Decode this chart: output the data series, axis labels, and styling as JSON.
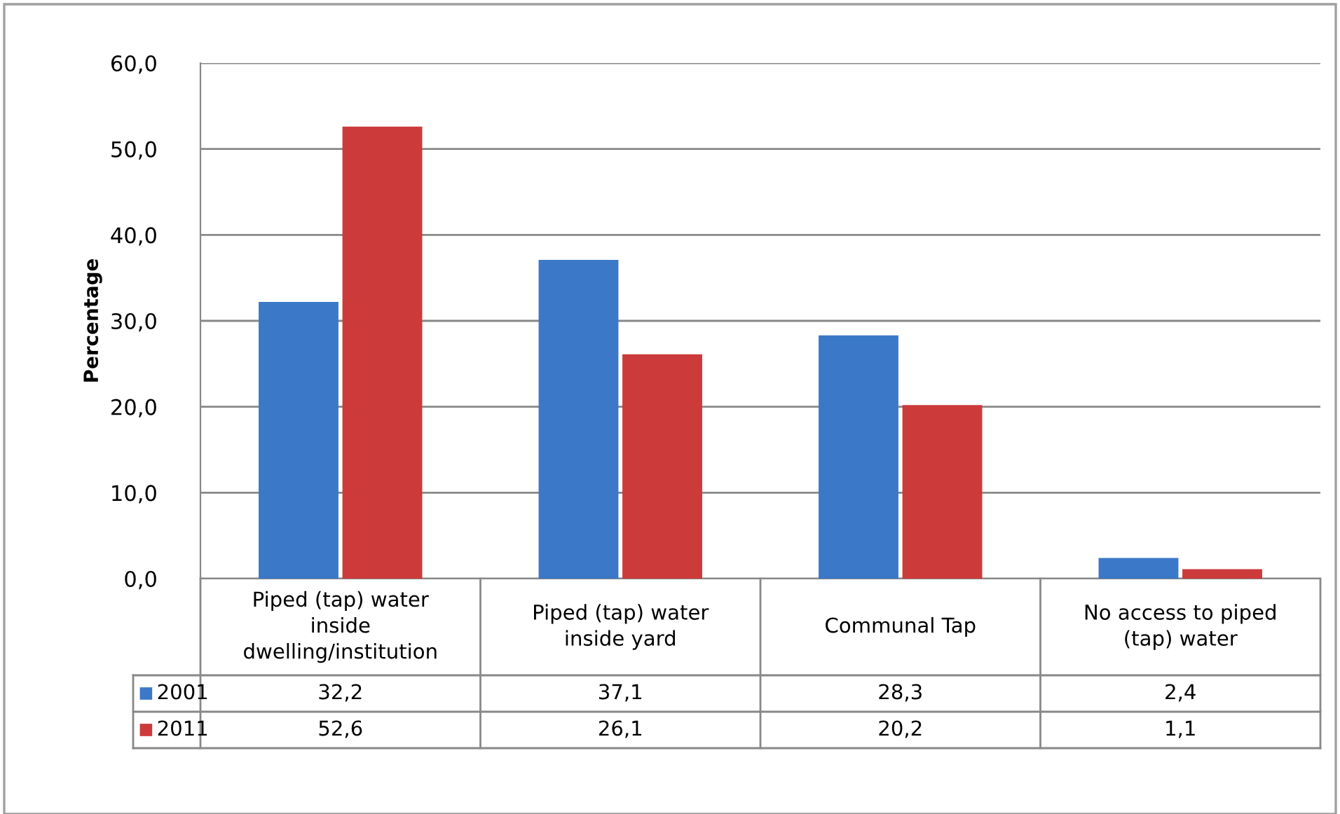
{
  "chart_data": {
    "type": "bar",
    "ylabel": "Percentage",
    "categories": [
      "Piped (tap) water\ninside\ndwelling/institution",
      "Piped (tap) water\ninside yard",
      "Communal Tap",
      "No access to piped\n(tap) water"
    ],
    "series": [
      {
        "name": "2001",
        "color": "#3b78c8",
        "values": [
          32.2,
          37.1,
          28.3,
          2.4
        ],
        "value_labels": [
          "32,2",
          "37,1",
          "28,3",
          "2,4"
        ]
      },
      {
        "name": "2011",
        "color": "#cc3a3a",
        "values": [
          52.6,
          26.1,
          20.2,
          1.1
        ],
        "value_labels": [
          "52,6",
          "26,1",
          "20,2",
          "1,1"
        ]
      }
    ],
    "ylim": [
      0,
      60
    ],
    "yticks": [
      {
        "value": 0,
        "label": "0,0"
      },
      {
        "value": 10,
        "label": "10,0"
      },
      {
        "value": 20,
        "label": "20,0"
      },
      {
        "value": 30,
        "label": "30,0"
      },
      {
        "value": 40,
        "label": "40,0"
      },
      {
        "value": 50,
        "label": "50,0"
      },
      {
        "value": 60,
        "label": "60,0"
      }
    ],
    "grid": "y",
    "legend": "bottom"
  }
}
